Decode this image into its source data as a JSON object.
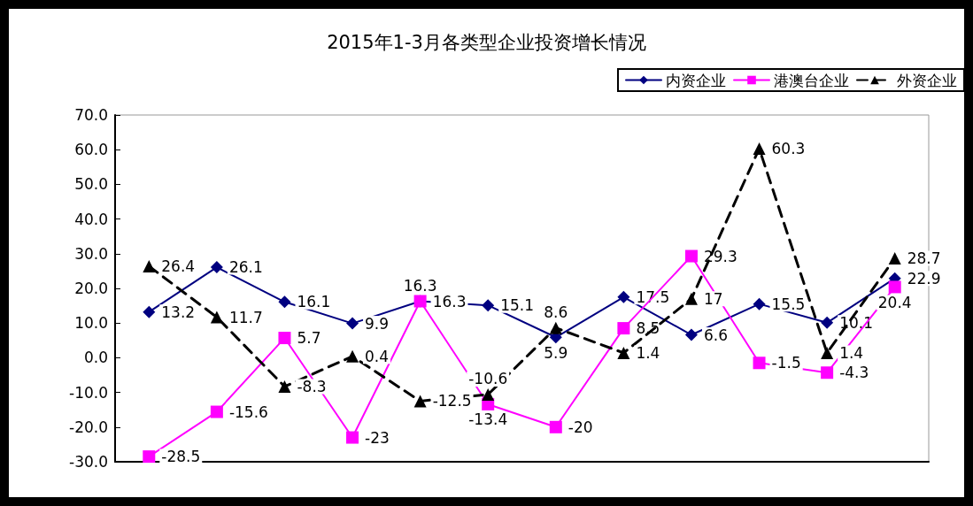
{
  "chart_data": {
    "type": "line",
    "title": "2015年1-3月各类型企业投资增长情况",
    "categories": [
      null,
      null,
      null,
      null,
      null,
      null,
      null,
      null,
      null,
      null,
      null,
      null
    ],
    "series": [
      {
        "name": "内资企业",
        "color": "#000080",
        "marker": "diamond",
        "line_style": "solid",
        "values": [
          13.2,
          26.1,
          16.1,
          9.9,
          16.3,
          15.1,
          5.9,
          17.5,
          6.6,
          15.5,
          10.1,
          22.9
        ]
      },
      {
        "name": "港澳台企业",
        "color": "#ff00ff",
        "marker": "square",
        "line_style": "solid",
        "values": [
          -28.5,
          -15.6,
          5.7,
          -23,
          16.3,
          -13.4,
          -20,
          8.5,
          29.3,
          -1.5,
          -4.3,
          20.4
        ]
      },
      {
        "name": "外资企业",
        "color": "#000000",
        "marker": "triangle",
        "line_style": "dashed",
        "values": [
          26.4,
          11.7,
          -8.3,
          0.4,
          -12.5,
          -10.6,
          8.6,
          1.4,
          17,
          60.3,
          1.4,
          28.7
        ]
      }
    ],
    "ylim": [
      -30,
      70
    ],
    "yticks": [
      {
        "value": -30,
        "label": "-30.0"
      },
      {
        "value": -20,
        "label": "-20.0"
      },
      {
        "value": -10,
        "label": "-10.0"
      },
      {
        "value": 0,
        "label": "0.0"
      },
      {
        "value": 10,
        "label": "10.0"
      },
      {
        "value": 20,
        "label": "20.0"
      },
      {
        "value": 30,
        "label": "30.0"
      },
      {
        "value": 40,
        "label": "40.0"
      },
      {
        "value": 50,
        "label": "50.0"
      },
      {
        "value": 60,
        "label": "60.0"
      },
      {
        "value": 70,
        "label": "70.0"
      }
    ],
    "grid": false,
    "legend": "top right",
    "data_labels": true
  }
}
